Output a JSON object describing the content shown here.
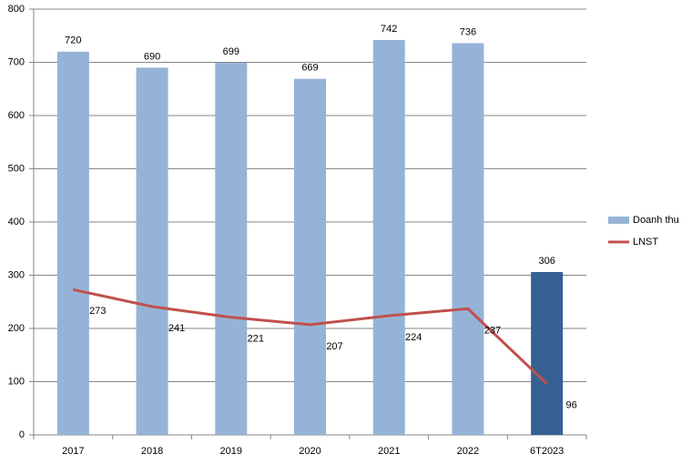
{
  "chart_data": {
    "type": "bar",
    "categories": [
      "2017",
      "2018",
      "2019",
      "2020",
      "2021",
      "2022",
      "6T2023"
    ],
    "series": [
      {
        "name": "Doanh thu",
        "type": "bar",
        "color": "#95b3d7",
        "point_colors": [
          "#95b3d7",
          "#95b3d7",
          "#95b3d7",
          "#95b3d7",
          "#95b3d7",
          "#95b3d7",
          "#366092"
        ],
        "values": [
          720,
          690,
          699,
          669,
          742,
          736,
          306
        ]
      },
      {
        "name": "LNST",
        "type": "line",
        "color": "#c0504d",
        "values": [
          273,
          241,
          221,
          207,
          224,
          237,
          96
        ]
      }
    ],
    "ylim": [
      0,
      800
    ],
    "yticks": [
      0,
      100,
      200,
      300,
      400,
      500,
      600,
      700,
      800
    ],
    "grid": true,
    "legend": "right"
  }
}
